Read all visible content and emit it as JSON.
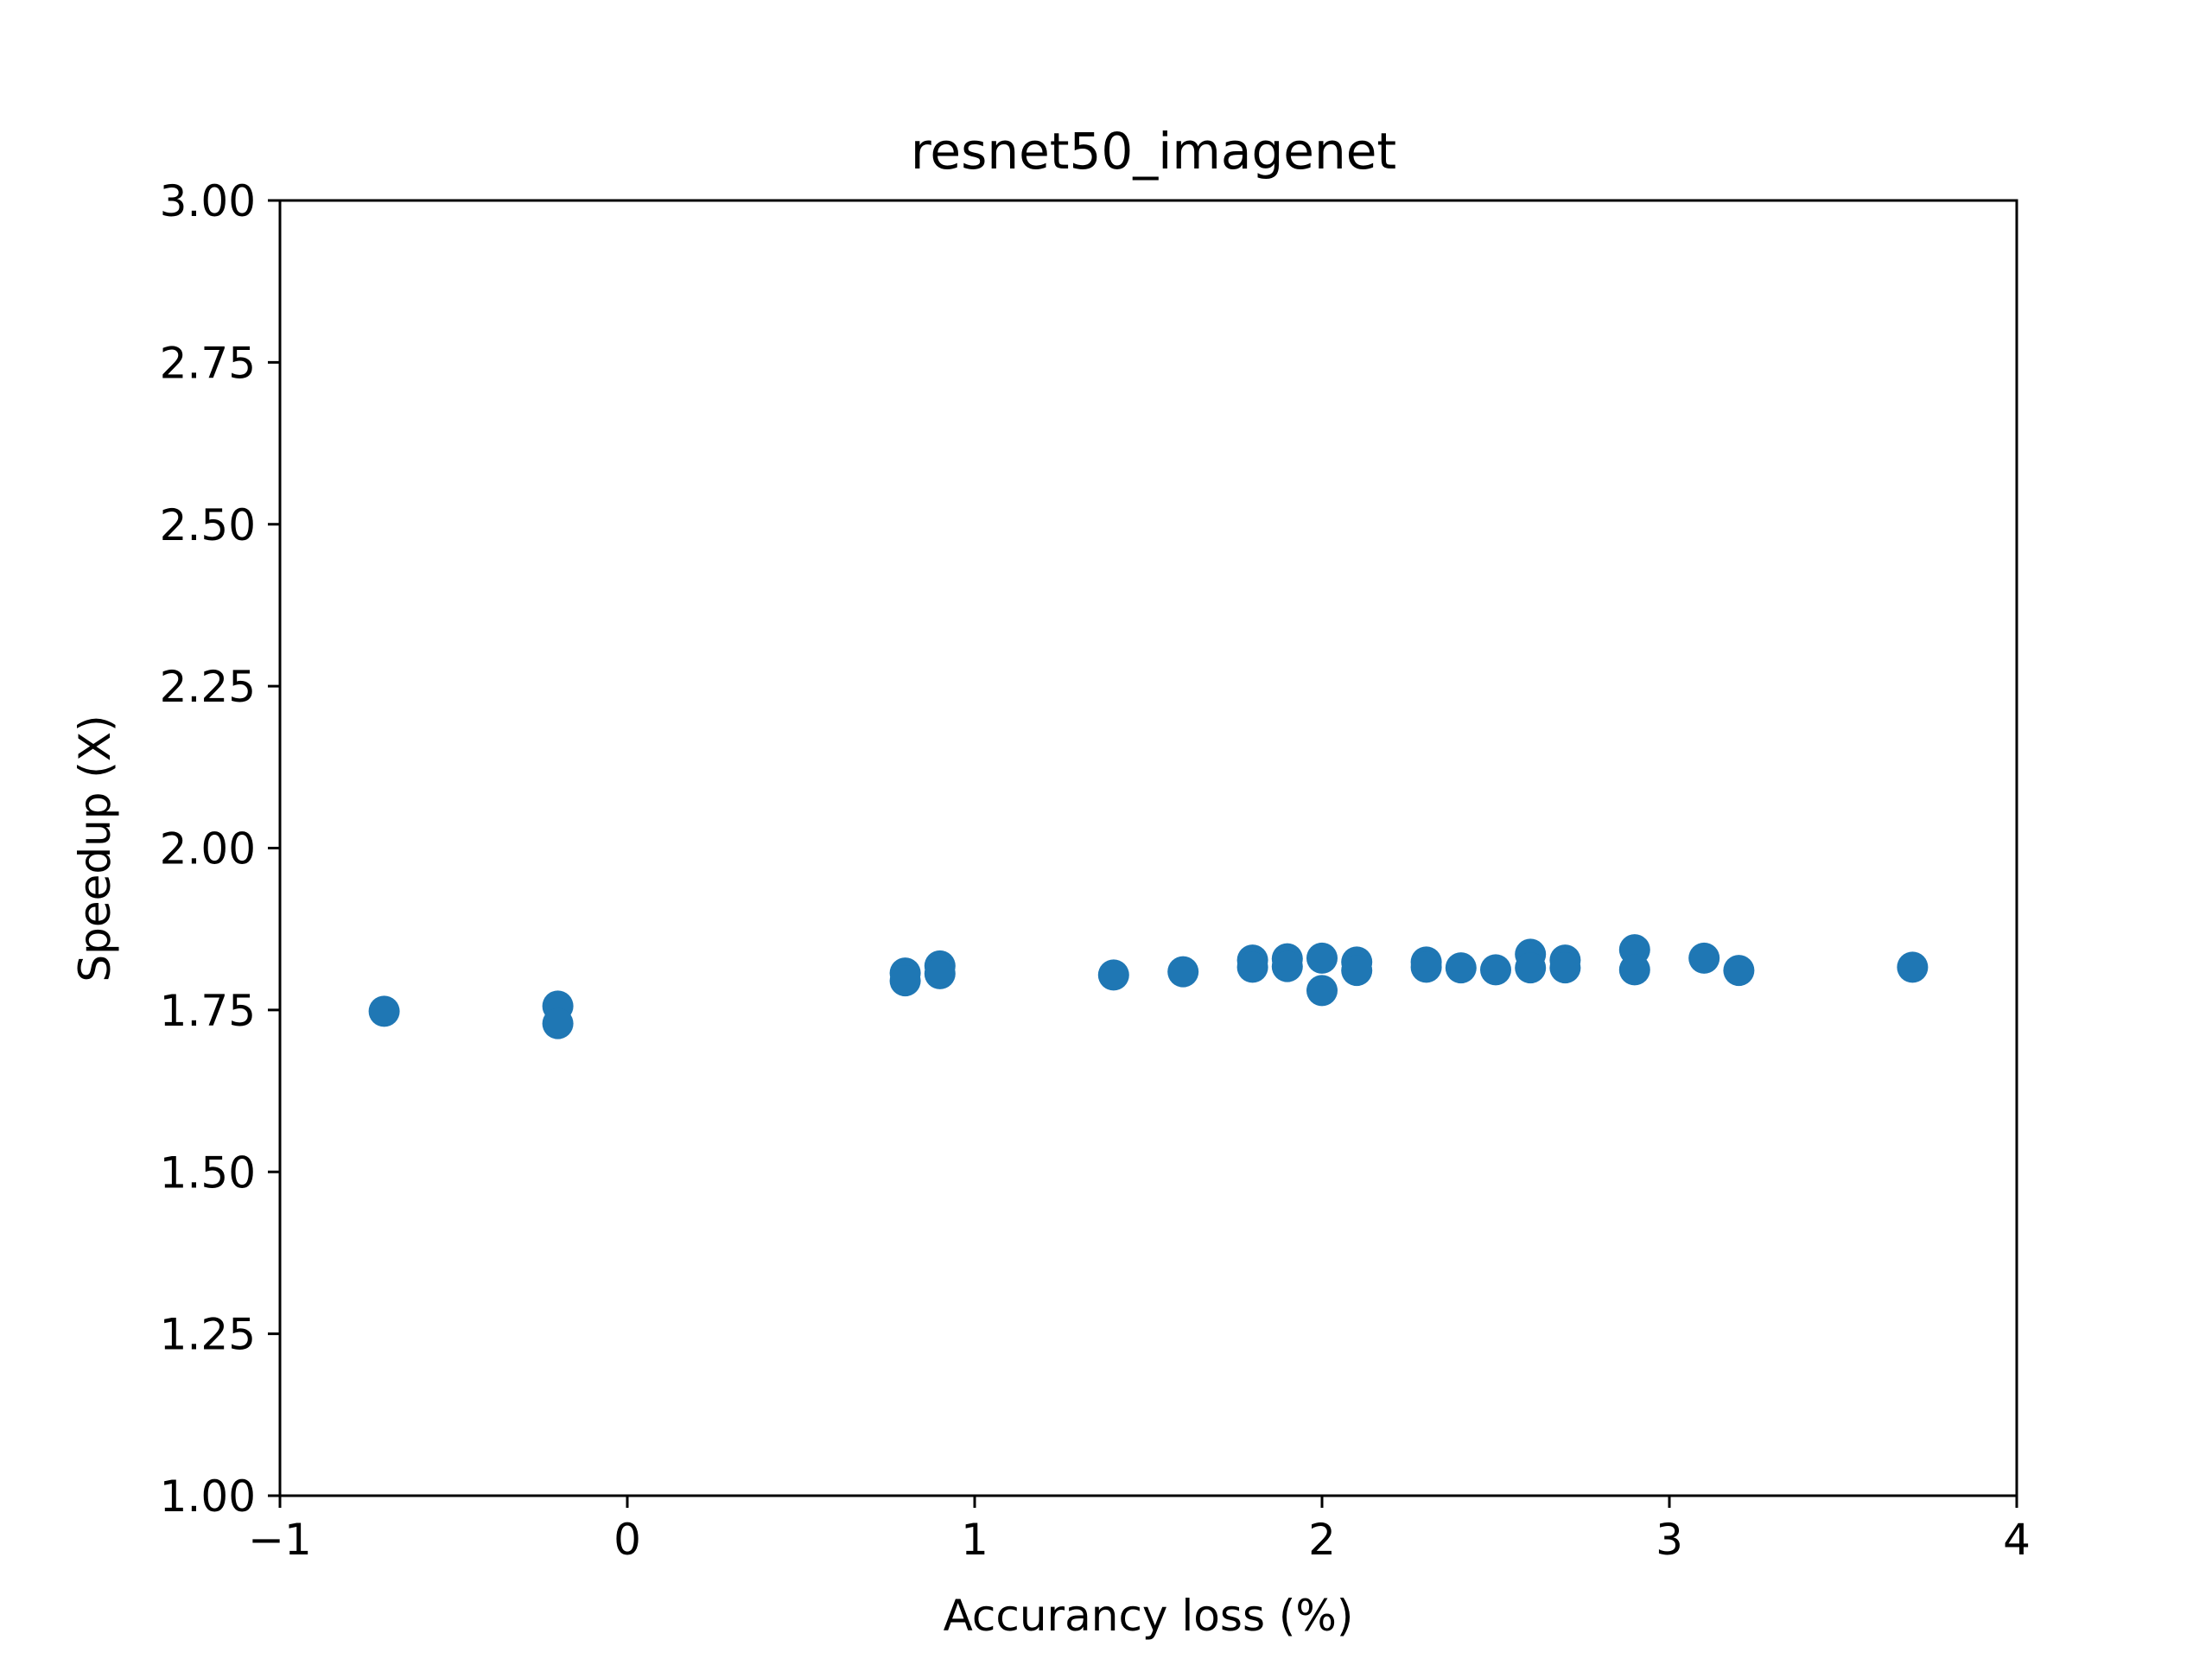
{
  "chart_data": {
    "type": "scatter",
    "title": "resnet50_imagenet",
    "xlabel": "Accurancy loss (%)",
    "ylabel": "Speedup (X)",
    "xlim": [
      -1,
      4
    ],
    "ylim": [
      1.0,
      3.0
    ],
    "x_ticks": [
      -1,
      0,
      1,
      2,
      3,
      4
    ],
    "x_tick_labels": [
      "−1",
      "0",
      "1",
      "2",
      "3",
      "4"
    ],
    "y_ticks": [
      1.0,
      1.25,
      1.5,
      1.75,
      2.0,
      2.25,
      2.5,
      2.75,
      3.0
    ],
    "y_tick_labels": [
      "1.00",
      "1.25",
      "1.50",
      "1.75",
      "2.00",
      "2.25",
      "2.50",
      "2.75",
      "3.00"
    ],
    "grid": false,
    "marker_color": "#1f77b4",
    "points": [
      {
        "x": -0.7,
        "y": 1.748
      },
      {
        "x": -0.2,
        "y": 1.756
      },
      {
        "x": -0.2,
        "y": 1.729
      },
      {
        "x": 0.8,
        "y": 1.807
      },
      {
        "x": 0.8,
        "y": 1.795
      },
      {
        "x": 0.9,
        "y": 1.818
      },
      {
        "x": 0.9,
        "y": 1.806
      },
      {
        "x": 1.4,
        "y": 1.804
      },
      {
        "x": 1.6,
        "y": 1.809
      },
      {
        "x": 1.8,
        "y": 1.827
      },
      {
        "x": 1.8,
        "y": 1.816
      },
      {
        "x": 1.9,
        "y": 1.829
      },
      {
        "x": 1.9,
        "y": 1.817
      },
      {
        "x": 2.0,
        "y": 1.83
      },
      {
        "x": 2.0,
        "y": 1.78
      },
      {
        "x": 2.1,
        "y": 1.824
      },
      {
        "x": 2.1,
        "y": 1.811
      },
      {
        "x": 2.3,
        "y": 1.824
      },
      {
        "x": 2.3,
        "y": 1.816
      },
      {
        "x": 2.4,
        "y": 1.815
      },
      {
        "x": 2.5,
        "y": 1.812
      },
      {
        "x": 2.6,
        "y": 1.836
      },
      {
        "x": 2.6,
        "y": 1.815
      },
      {
        "x": 2.7,
        "y": 1.827
      },
      {
        "x": 2.7,
        "y": 1.815
      },
      {
        "x": 2.9,
        "y": 1.843
      },
      {
        "x": 2.9,
        "y": 1.812
      },
      {
        "x": 3.1,
        "y": 1.83
      },
      {
        "x": 3.2,
        "y": 1.811
      },
      {
        "x": 3.7,
        "y": 1.816
      }
    ]
  }
}
